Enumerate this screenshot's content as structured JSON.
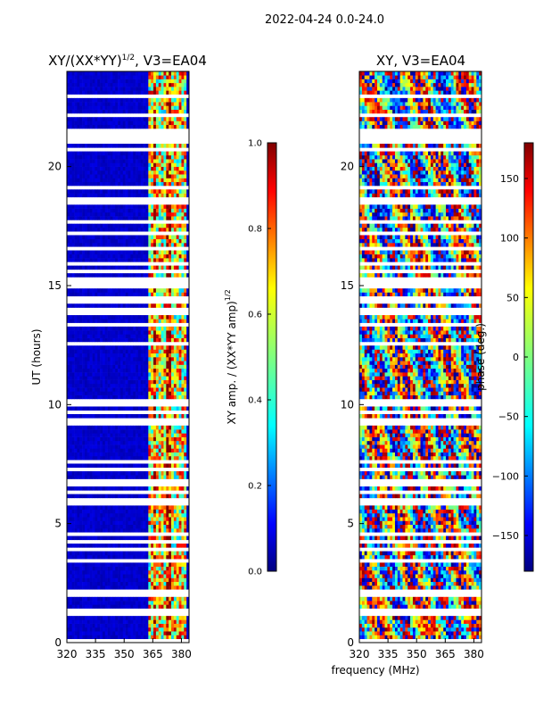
{
  "figure": {
    "suptitle": "2022-04-24 0.0-24.0",
    "shared_xlabel": "frequency (MHz)"
  },
  "chart_data": [
    {
      "type": "heatmap",
      "title": "XY/(XX*YY)",
      "title_sup": "1/2",
      "title_suffix": ", V3=EA04",
      "xlabel": "",
      "ylabel": "UT (hours)",
      "xlim": [
        320,
        384
      ],
      "ylim": [
        0,
        24
      ],
      "x_ticks": [
        320,
        335,
        350,
        365,
        380
      ],
      "y_ticks": [
        0,
        5,
        10,
        15,
        20
      ],
      "colorbar": {
        "label": "XY amp. / (XX*YY amp)",
        "label_sup": "1/2",
        "range": [
          0.0,
          1.0
        ],
        "ticks": [
          "0.0",
          "0.2",
          "0.4",
          "0.6",
          "0.8",
          "1.0"
        ],
        "colormap": "jet"
      },
      "description_values": {
        "background_level": 0.05,
        "rfi_band_mhz": [
          363,
          382
        ],
        "rfi_level_range": [
          0.3,
          0.95
        ]
      }
    },
    {
      "type": "heatmap",
      "title": "XY, V3=EA04",
      "xlabel": "frequency (MHz)",
      "ylabel": "",
      "xlim": [
        320,
        384
      ],
      "ylim": [
        0,
        24
      ],
      "x_ticks": [
        320,
        335,
        350,
        365,
        380
      ],
      "y_ticks": [
        0,
        5,
        10,
        15,
        20
      ],
      "colorbar": {
        "label": "phase (deg.)",
        "range": [
          -180,
          180
        ],
        "ticks": [
          "−150",
          "−100",
          "−50",
          "0",
          "50",
          "100",
          "150"
        ],
        "tick_values": [
          -150,
          -100,
          -50,
          0,
          50,
          100,
          150
        ],
        "colormap": "jet"
      }
    }
  ],
  "colors": {
    "jet": [
      "#00007f",
      "#0000ff",
      "#007fff",
      "#00ffff",
      "#7fff7f",
      "#ffff00",
      "#ff7f00",
      "#ff0000",
      "#7f0000"
    ]
  }
}
